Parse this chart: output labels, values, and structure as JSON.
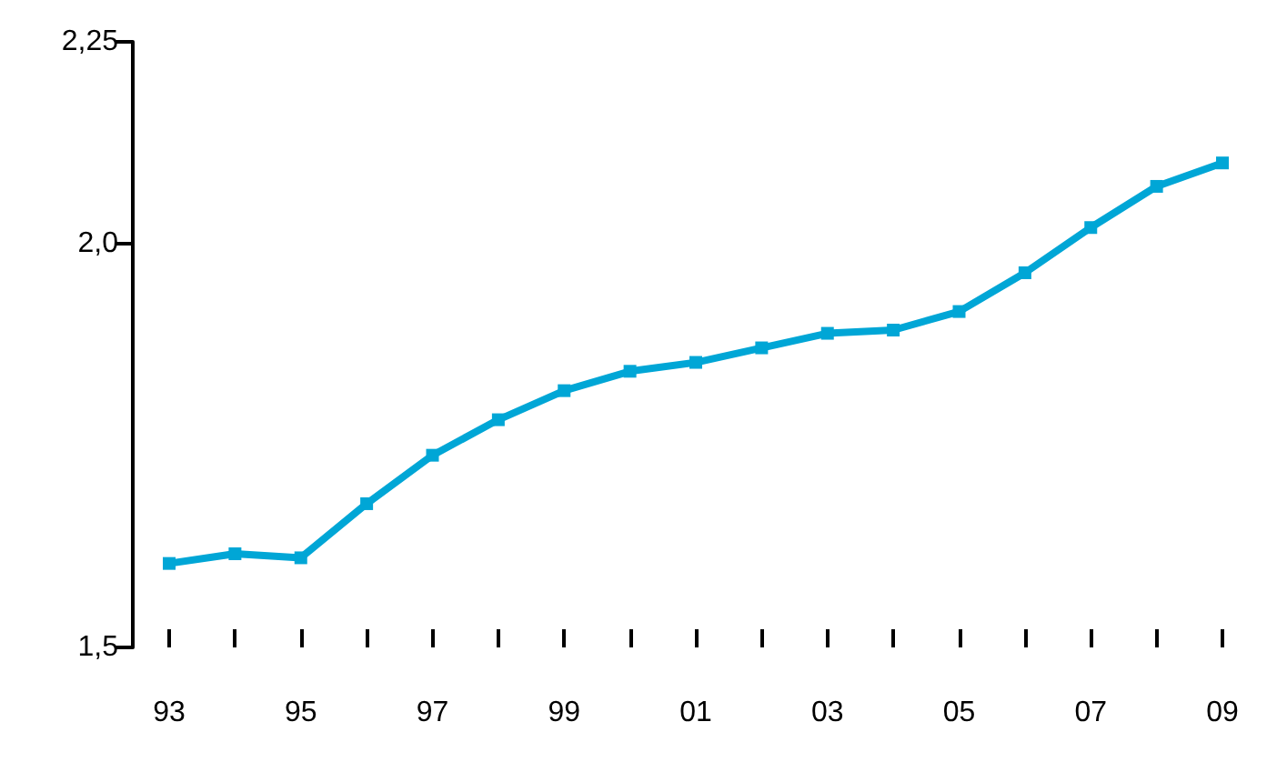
{
  "chart_data": {
    "type": "line",
    "categories": [
      "93",
      null,
      "95",
      null,
      "97",
      null,
      "99",
      null,
      "01",
      null,
      "03",
      null,
      "05",
      null,
      "07",
      null,
      "09"
    ],
    "series": [
      {
        "color": "#00a6d6",
        "values": [
          1.604,
          1.616,
          1.611,
          1.678,
          1.738,
          1.782,
          1.818,
          1.842,
          1.853,
          1.871,
          1.889,
          1.893,
          1.916,
          1.964,
          2.02,
          2.071,
          2.1
        ]
      }
    ],
    "ylim": [
      1.5,
      2.25
    ],
    "yticks": [
      {
        "value": 1.5,
        "label": "1,5"
      },
      {
        "value": 2.0,
        "label": "2,0"
      },
      {
        "value": 2.25,
        "label": "2,25"
      }
    ],
    "grid": false,
    "marker": "square",
    "line_style": "solid"
  }
}
